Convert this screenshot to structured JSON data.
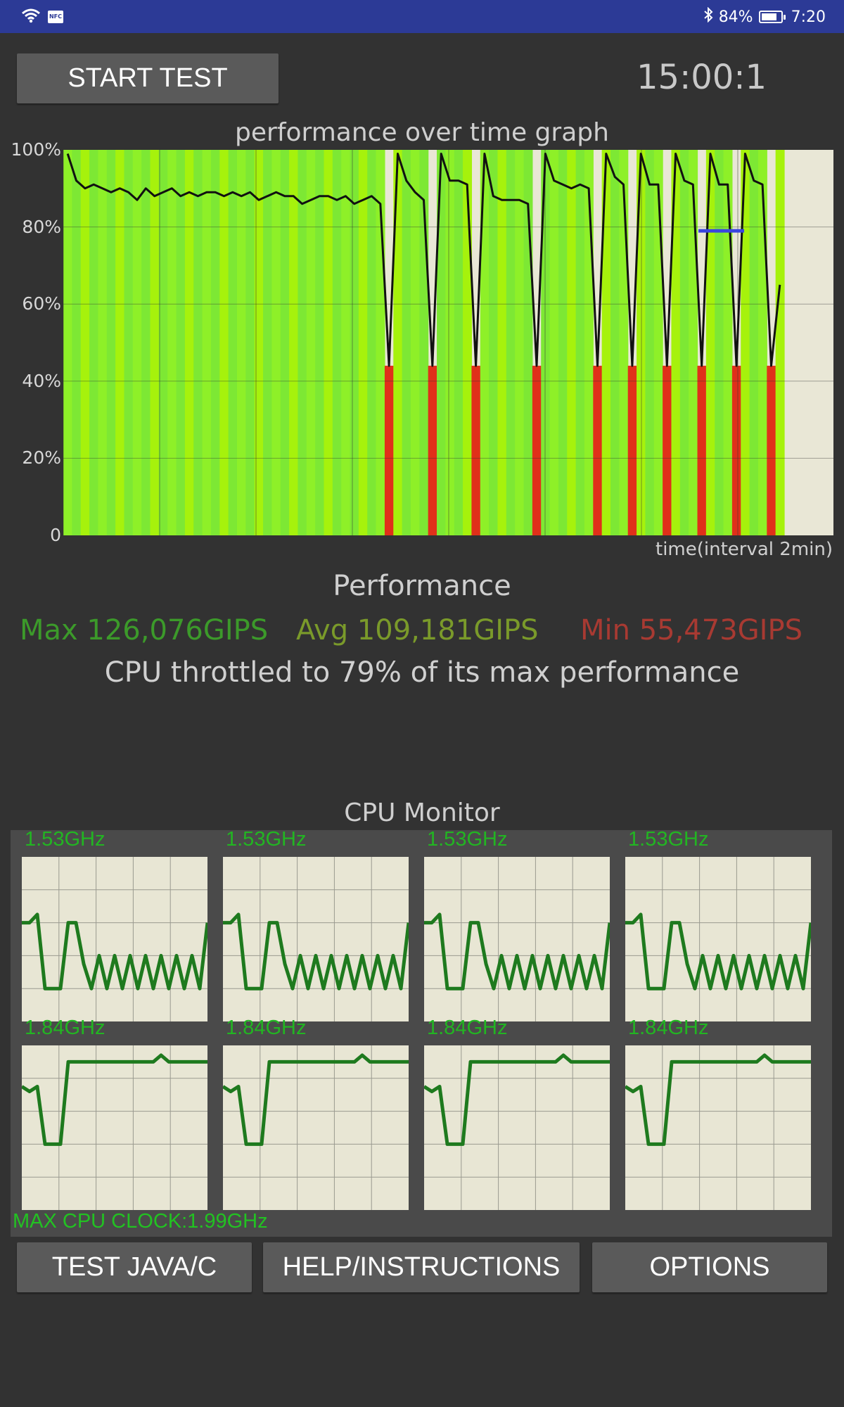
{
  "status_bar": {
    "wifi_icon": "wifi-icon",
    "nfc_label": "NFC",
    "bluetooth_icon": "bluetooth-icon",
    "battery_text": "84%",
    "battery_level": 0.84,
    "time": "7:20"
  },
  "controls": {
    "start_label": "START TEST",
    "timer": "15:00:1"
  },
  "graph": {
    "title": "performance over time graph",
    "y_ticks": [
      "100%",
      "80%",
      "60%",
      "40%",
      "20%",
      "0"
    ],
    "x_label": "time(interval 2min)"
  },
  "chart_data": {
    "type": "area",
    "title": "performance over time graph",
    "xlabel": "time(interval 2min)",
    "ylabel": "",
    "ylim": [
      0,
      100
    ],
    "y_unit": "%",
    "grid": true,
    "series": [
      {
        "values": [
          99,
          92,
          90,
          91,
          90,
          89,
          90,
          89,
          87,
          90,
          88,
          89,
          90,
          88,
          89,
          88,
          89,
          89,
          88,
          89,
          88,
          89,
          87,
          88,
          89,
          88,
          88,
          86,
          87,
          88,
          88,
          87,
          88,
          86,
          87,
          88,
          86,
          44,
          99,
          92,
          89,
          87,
          44,
          99,
          92,
          92,
          91,
          44,
          99,
          88,
          87,
          87,
          87,
          86,
          44,
          99,
          92,
          91,
          90,
          91,
          90,
          44,
          99,
          93,
          91,
          44,
          99,
          91,
          91,
          44,
          99,
          92,
          91,
          44,
          99,
          91,
          91,
          44,
          99,
          92,
          91,
          44,
          65
        ]
      }
    ],
    "min_threshold_percent": 79
  },
  "performance": {
    "heading": "Performance",
    "max": "Max 126,076GIPS",
    "avg": "Avg 109,181GIPS",
    "min": "Min 55,473GIPS",
    "throttle": "CPU throttled to 79% of its max performance",
    "colors": {
      "max": "#3c9a2a",
      "avg": "#7a9a2a",
      "min": "#a83a32"
    }
  },
  "cpu_monitor": {
    "heading": "CPU Monitor",
    "cores": [
      {
        "freq": "1.53GHz",
        "values": [
          60,
          60,
          65,
          20,
          20,
          20,
          60,
          60,
          35,
          20,
          40,
          20,
          40,
          20,
          40,
          20,
          40,
          20,
          40,
          20,
          40,
          20,
          40,
          20,
          60
        ]
      },
      {
        "freq": "1.53GHz",
        "values": [
          60,
          60,
          65,
          20,
          20,
          20,
          60,
          60,
          35,
          20,
          40,
          20,
          40,
          20,
          40,
          20,
          40,
          20,
          40,
          20,
          40,
          20,
          40,
          20,
          60
        ]
      },
      {
        "freq": "1.53GHz",
        "values": [
          60,
          60,
          65,
          20,
          20,
          20,
          60,
          60,
          35,
          20,
          40,
          20,
          40,
          20,
          40,
          20,
          40,
          20,
          40,
          20,
          40,
          20,
          40,
          20,
          60
        ]
      },
      {
        "freq": "1.53GHz",
        "values": [
          60,
          60,
          65,
          20,
          20,
          20,
          60,
          60,
          35,
          20,
          40,
          20,
          40,
          20,
          40,
          20,
          40,
          20,
          40,
          20,
          40,
          20,
          40,
          20,
          60
        ]
      },
      {
        "freq": "1.84GHz",
        "values": [
          75,
          72,
          75,
          40,
          40,
          40,
          90,
          90,
          90,
          90,
          90,
          90,
          90,
          90,
          90,
          90,
          90,
          90,
          94,
          90,
          90,
          90,
          90,
          90,
          90
        ]
      },
      {
        "freq": "1.84GHz",
        "values": [
          75,
          72,
          75,
          40,
          40,
          40,
          90,
          90,
          90,
          90,
          90,
          90,
          90,
          90,
          90,
          90,
          90,
          90,
          94,
          90,
          90,
          90,
          90,
          90,
          90
        ]
      },
      {
        "freq": "1.84GHz",
        "values": [
          75,
          72,
          75,
          40,
          40,
          40,
          90,
          90,
          90,
          90,
          90,
          90,
          90,
          90,
          90,
          90,
          90,
          90,
          94,
          90,
          90,
          90,
          90,
          90,
          90
        ]
      },
      {
        "freq": "1.84GHz",
        "values": [
          75,
          72,
          75,
          40,
          40,
          40,
          90,
          90,
          90,
          90,
          90,
          90,
          90,
          90,
          90,
          90,
          90,
          90,
          94,
          90,
          90,
          90,
          90,
          90,
          90
        ]
      }
    ],
    "max_clock": "MAX CPU CLOCK:1.99GHz"
  },
  "buttons": {
    "test": "TEST JAVA/C",
    "help": "HELP/INSTRUCTIONS",
    "options": "OPTIONS"
  }
}
